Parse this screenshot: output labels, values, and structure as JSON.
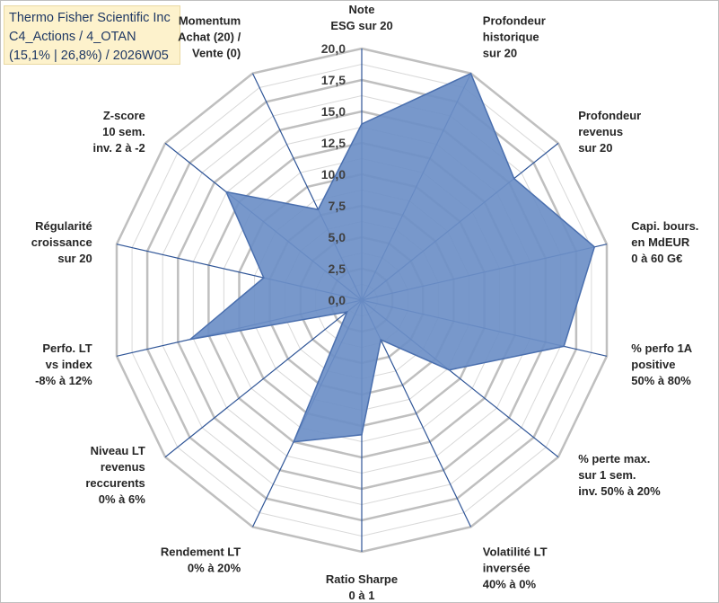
{
  "header": {
    "line1": "Thermo Fisher Scientific Inc",
    "line2": "C4_Actions / 4_OTAN",
    "line3": "(15,1% | 26,8%) / 2026W05"
  },
  "chart_data": {
    "type": "radar",
    "rmin": 0,
    "rmax": 20,
    "ticks": [
      "0,0",
      "2,5",
      "5,0",
      "7,5",
      "10,0",
      "12,5",
      "15,0",
      "17,5",
      "20,0"
    ],
    "grid_step": 1.25,
    "axes": [
      {
        "label": [
          "Note",
          "ESG sur 20"
        ],
        "value": 14.0
      },
      {
        "label": [
          "Profondeur",
          "historique",
          "sur 20"
        ],
        "value": 20.0
      },
      {
        "label": [
          "Profondeur",
          "revenus",
          "sur 20"
        ],
        "value": 15.5
      },
      {
        "label": [
          "Capi. bours.",
          "en MdEUR",
          "0 à 60 G€"
        ],
        "value": 19.0
      },
      {
        "label": [
          "% perfo 1A",
          "positive",
          "50% à 80%"
        ],
        "value": 16.5
      },
      {
        "label": [
          "% perte max.",
          "sur 1 sem.",
          "inv. 50% à 20%"
        ],
        "value": 8.9
      },
      {
        "label": [
          "Volatilité LT",
          "inversée",
          "40% à 0%"
        ],
        "value": 3.5
      },
      {
        "label": [
          "Ratio Sharpe",
          "0 à 1"
        ],
        "value": 10.7
      },
      {
        "label": [
          "Rendement LT",
          "0% à 20%"
        ],
        "value": 12.5
      },
      {
        "label": [
          "Niveau LT",
          "revenus",
          "reccurents",
          "0% à 6%"
        ],
        "value": 1.5
      },
      {
        "label": [
          "Perfo. LT",
          "vs index",
          "-8% à 12%"
        ],
        "value": 14.0
      },
      {
        "label": [
          "Régularité",
          "croissance",
          "sur 20"
        ],
        "value": 8.0
      },
      {
        "label": [
          "Z-score",
          "10 sem.",
          "inv. 2 à -2"
        ],
        "value": 13.8
      },
      {
        "label": [
          "Momentum",
          "Achat (20) /",
          "Vente (0)"
        ],
        "value": 8.0
      }
    ]
  }
}
